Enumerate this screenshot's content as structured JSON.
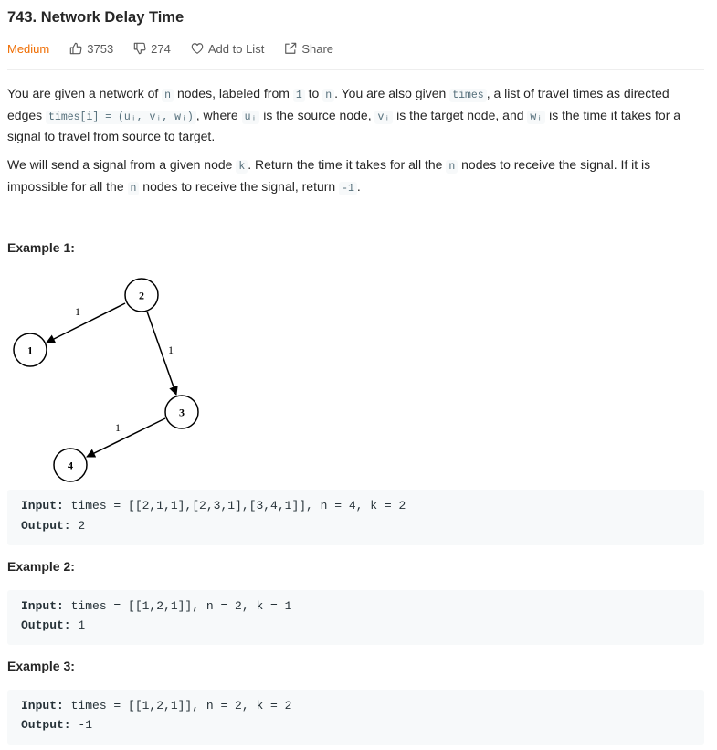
{
  "problem": {
    "title": "743. Network Delay Time",
    "difficulty": "Medium",
    "likes": "3753",
    "dislikes": "274",
    "add_to_list": "Add to List",
    "share": "Share"
  },
  "description": {
    "p1": {
      "t1": "You are given a network of ",
      "c1": "n",
      "t2": " nodes, labeled from ",
      "c2": "1",
      "t3": " to ",
      "c3": "n",
      "t4": ". You are also given ",
      "c4": "times",
      "t5": ", a list of travel times as directed edges ",
      "c5": "times[i] = (uᵢ, vᵢ, wᵢ)",
      "t6": ", where ",
      "c6": "uᵢ",
      "t7": " is the source node, ",
      "c7": "vᵢ",
      "t8": " is the target node, and ",
      "c8": "wᵢ",
      "t9": " is the time it takes for a signal to travel from source to target."
    },
    "p2": {
      "t1": "We will send a signal from a given node ",
      "c1": "k",
      "t2": ". Return the time it takes for all the ",
      "c2": "n",
      "t3": " nodes to receive the signal. If it is impossible for all the ",
      "c3": "n",
      "t4": " nodes to receive the signal, return ",
      "c4": "-1",
      "t5": "."
    }
  },
  "examples": [
    {
      "heading": "Example 1:",
      "input_label": "Input:",
      "input": " times = [[2,1,1],[2,3,1],[3,4,1]], n = 4, k = 2",
      "output_label": "Output:",
      "output": " 2"
    },
    {
      "heading": "Example 2:",
      "input_label": "Input:",
      "input": " times = [[1,2,1]], n = 2, k = 1",
      "output_label": "Output:",
      "output": " 1"
    },
    {
      "heading": "Example 3:",
      "input_label": "Input:",
      "input": " times = [[1,2,1]], n = 2, k = 2",
      "output_label": "Output:",
      "output": " -1"
    }
  ],
  "graph": {
    "nodes": [
      "1",
      "2",
      "3",
      "4"
    ],
    "edge_weights": [
      "1",
      "1",
      "1"
    ]
  },
  "icons": {
    "like": "thumbs-up-icon",
    "dislike": "thumbs-down-icon",
    "add_to_list": "heart-icon",
    "share": "share-icon"
  },
  "colors": {
    "difficulty_medium": "#ef6c00",
    "code_background": "#f7f9fa"
  }
}
